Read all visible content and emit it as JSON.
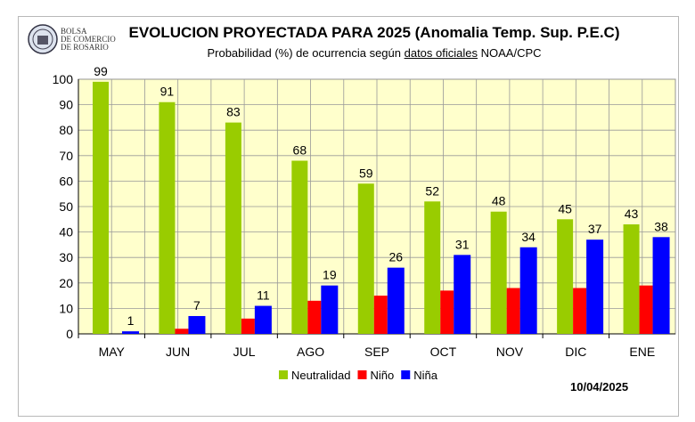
{
  "logo": {
    "lines": [
      "BOLSA",
      "DE COMERCIO",
      "DE ROSARIO"
    ]
  },
  "date": "10/04/2025",
  "chart_data": {
    "type": "bar",
    "title": "EVOLUCION PROYECTADA PARA 2025 (Anomalia Temp. Sup. P.E.C)",
    "subtitle_pre": "Probabilidad (%) de ocurrencia según ",
    "subtitle_link": "datos oficiales",
    "subtitle_post": " NOAA/CPC",
    "categories": [
      "MAY",
      "JUN",
      "JUL",
      "AGO",
      "SEP",
      "OCT",
      "NOV",
      "DIC",
      "ENE"
    ],
    "series": [
      {
        "name": "Neutralidad",
        "color": "#99cc00",
        "values": [
          99,
          91,
          83,
          68,
          59,
          52,
          48,
          45,
          43
        ],
        "labeled": true
      },
      {
        "name": "Niño",
        "color": "#ff0000",
        "values": [
          0,
          2,
          6,
          13,
          15,
          17,
          18,
          18,
          19
        ],
        "labeled": false
      },
      {
        "name": "Niña",
        "color": "#0000ff",
        "values": [
          1,
          7,
          11,
          19,
          26,
          31,
          34,
          37,
          38
        ],
        "labeled": true
      }
    ],
    "ylim": [
      0,
      100
    ],
    "yticks": [
      0,
      10,
      20,
      30,
      40,
      50,
      60,
      70,
      80,
      90,
      100
    ],
    "grid": true,
    "plot_background": "#ffffcc",
    "legend_position": "bottom"
  }
}
